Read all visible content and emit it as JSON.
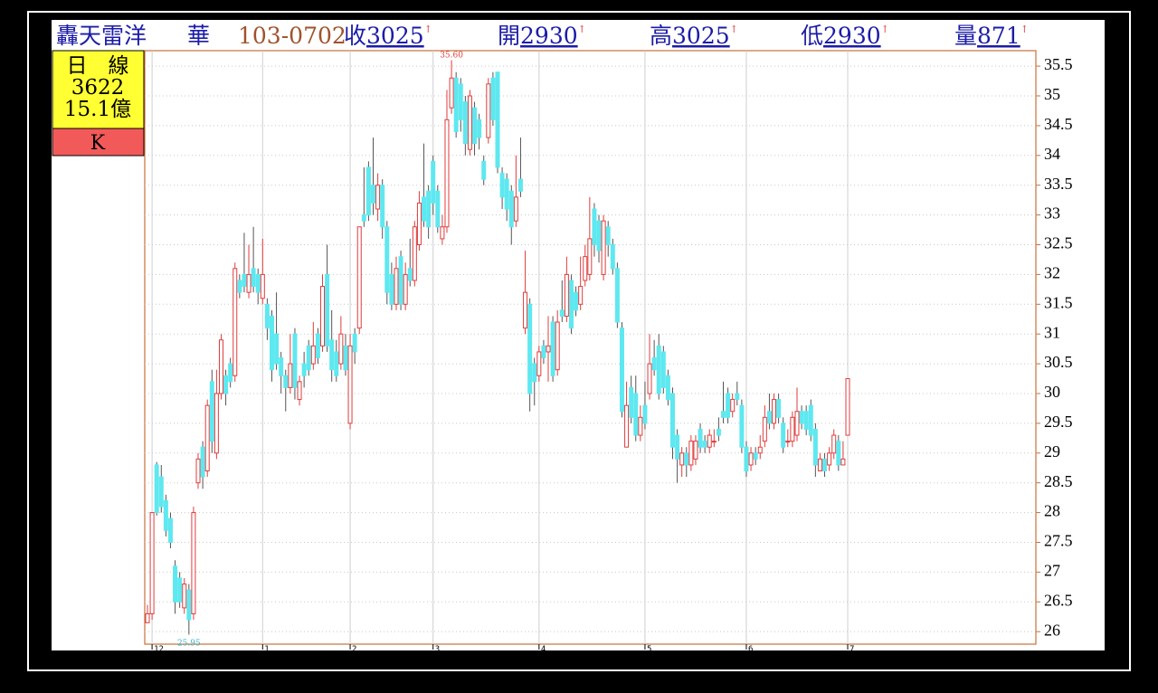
{
  "header": {
    "name": "轟天雷洋",
    "name2": "華",
    "date": "103-0702",
    "quotes": [
      {
        "label": "收",
        "value": "3025",
        "mark": "↑"
      },
      {
        "label": "開",
        "value": "2930",
        "mark": "↑"
      },
      {
        "label": "高",
        "value": "3025",
        "mark": "↑"
      },
      {
        "label": "低",
        "value": "2930",
        "mark": "↑"
      },
      {
        "label": "量",
        "value": "871",
        "mark": "↑"
      }
    ]
  },
  "side_panel": {
    "period": "日　線",
    "code": "3622",
    "amount": "15.1億",
    "chart_kind": "K"
  },
  "chart_data": {
    "type": "candlestick",
    "categories": [
      null,
      "12",
      null,
      null,
      null,
      null,
      null,
      null,
      null,
      null,
      null,
      null,
      null,
      null,
      null,
      null,
      null,
      null,
      null,
      null,
      null,
      null,
      null,
      null,
      null,
      "1",
      null,
      null,
      null,
      null,
      null,
      null,
      null,
      null,
      null,
      null,
      null,
      null,
      null,
      null,
      null,
      null,
      null,
      null,
      "2",
      null,
      null,
      null,
      null,
      null,
      null,
      null,
      null,
      null,
      null,
      null,
      null,
      null,
      null,
      null,
      null,
      null,
      "3",
      null,
      null,
      null,
      null,
      null,
      null,
      null,
      null,
      null,
      null,
      null,
      null,
      null,
      null,
      null,
      null,
      null,
      null,
      null,
      null,
      null,
      null,
      "4",
      null,
      null,
      null,
      null,
      null,
      null,
      null,
      null,
      null,
      null,
      null,
      null,
      null,
      null,
      null,
      null,
      null,
      null,
      null,
      null,
      null,
      null,
      "5",
      null,
      null,
      null,
      null,
      null,
      null,
      null,
      null,
      null,
      null,
      null,
      null,
      null,
      null,
      null,
      null,
      null,
      null,
      null,
      null,
      null,
      "6",
      null,
      null,
      null,
      null,
      null,
      null,
      null,
      null,
      null,
      null,
      null,
      null,
      null,
      null,
      null,
      null,
      null,
      null,
      null,
      null,
      null,
      "7"
    ],
    "open": [
      26.15,
      26.3,
      28.8,
      28.6,
      28.2,
      27.9,
      27.1,
      26.9,
      26.4,
      26.7,
      26.3,
      28.5,
      29.1,
      28.7,
      30.2,
      29.0,
      30.0,
      30.3,
      30.5,
      30.3,
      31.9,
      32.0,
      31.7,
      32.1,
      32.0,
      31.6,
      31.5,
      31.3,
      31.0,
      30.6,
      30.3,
      30.1,
      31.0,
      29.9,
      30.5,
      30.8,
      30.5,
      31.0,
      30.8,
      32.0,
      30.9,
      30.7,
      30.5,
      30.8,
      29.5,
      31.0,
      31.1,
      33.0,
      33.8,
      33.5,
      33.1,
      33.5,
      32.8,
      32.0,
      31.5,
      32.3,
      31.5,
      32.1,
      31.9,
      32.5,
      33.3,
      33.4,
      33.9,
      33.4,
      32.6,
      32.8,
      34.8,
      35.3,
      35.2,
      34.9,
      34.1,
      34.8,
      34.6,
      33.9,
      34.3,
      35.3,
      35.4,
      33.7,
      33.6,
      33.4,
      32.9,
      33.6,
      31.1,
      31.5,
      30.5,
      30.3,
      30.8,
      30.7,
      31.2,
      30.4,
      31.4,
      31.3,
      31.9,
      31.7,
      31.5,
      31.9,
      32.0,
      33.1,
      32.9,
      32.0,
      32.8,
      32.5,
      32.1,
      31.1,
      29.1,
      30.1,
      30.0,
      29.3,
      29.8,
      30.0,
      30.6,
      30.8,
      30.7,
      30.3,
      30.0,
      29.3,
      28.8,
      29.0,
      28.8,
      28.9,
      29.4,
      29.2,
      29.1,
      29.2,
      29.4,
      29.7,
      30.0,
      29.7,
      30.0,
      29.8,
      29.1,
      28.8,
      29.0,
      29.0,
      29.2,
      29.7,
      29.5,
      29.9,
      29.5,
      29.2,
      29.2,
      29.3,
      29.7,
      29.7,
      29.8,
      29.4,
      28.7,
      28.9,
      28.8,
      29.0,
      29.2,
      28.8,
      29.3
    ],
    "high": [
      26.45,
      28.0,
      28.85,
      28.8,
      28.3,
      28.0,
      27.2,
      27.0,
      26.9,
      26.8,
      28.1,
      29.0,
      29.2,
      29.9,
      30.4,
      30.4,
      31.0,
      30.4,
      30.6,
      32.2,
      32.0,
      32.7,
      32.5,
      32.8,
      32.1,
      32.6,
      31.6,
      31.4,
      31.7,
      30.7,
      30.4,
      31.0,
      31.1,
      30.3,
      30.7,
      30.9,
      31.2,
      31.1,
      32.0,
      32.5,
      31.4,
      30.9,
      31.3,
      31.0,
      31.0,
      31.1,
      32.8,
      33.8,
      33.9,
      34.3,
      33.7,
      33.6,
      32.9,
      32.2,
      32.3,
      32.4,
      32.2,
      32.6,
      32.9,
      33.4,
      34.2,
      33.5,
      34.0,
      33.5,
      33.0,
      35.1,
      35.6,
      35.4,
      35.3,
      35.0,
      35.1,
      34.9,
      34.7,
      34.0,
      35.3,
      35.4,
      35.4,
      33.8,
      33.7,
      33.5,
      34.0,
      34.3,
      32.4,
      31.6,
      30.6,
      30.8,
      30.9,
      31.3,
      31.3,
      31.4,
      31.9,
      32.3,
      32.0,
      31.8,
      32.3,
      32.5,
      33.3,
      33.2,
      33.0,
      33.0,
      32.9,
      32.6,
      32.2,
      31.2,
      30.2,
      30.3,
      30.3,
      29.8,
      30.2,
      31.0,
      30.9,
      31.0,
      30.8,
      30.4,
      30.1,
      29.4,
      29.1,
      29.1,
      29.3,
      29.3,
      29.5,
      29.3,
      29.4,
      29.4,
      29.6,
      30.2,
      30.1,
      30.0,
      30.2,
      29.9,
      29.2,
      29.1,
      29.1,
      29.3,
      29.8,
      30.0,
      30.0,
      30.0,
      29.6,
      29.4,
      29.7,
      30.1,
      29.8,
      29.8,
      29.9,
      29.5,
      29.0,
      29.0,
      29.1,
      29.4,
      29.3,
      29.2,
      30.25
    ],
    "low": [
      26.15,
      26.2,
      27.95,
      28.0,
      27.6,
      27.4,
      26.3,
      26.4,
      26.3,
      25.95,
      26.2,
      28.4,
      28.4,
      28.6,
      29.0,
      28.9,
      29.9,
      29.8,
      30.1,
      30.2,
      31.6,
      31.7,
      31.6,
      31.7,
      31.5,
      31.5,
      30.9,
      30.2,
      30.4,
      30.0,
      29.7,
      30.0,
      29.9,
      29.8,
      30.1,
      30.3,
      30.4,
      30.5,
      30.7,
      30.7,
      30.2,
      30.2,
      30.4,
      30.3,
      29.4,
      30.5,
      31.0,
      32.8,
      32.9,
      33.0,
      32.9,
      32.6,
      31.5,
      31.4,
      31.4,
      31.4,
      31.4,
      31.8,
      31.8,
      32.4,
      32.8,
      32.6,
      33.0,
      32.7,
      32.5,
      32.7,
      34.7,
      34.3,
      34.4,
      34.0,
      34.0,
      34.0,
      34.1,
      33.5,
      34.2,
      34.5,
      33.7,
      33.1,
      32.9,
      32.5,
      32.8,
      33.3,
      31.0,
      29.7,
      29.8,
      30.2,
      30.5,
      30.2,
      30.2,
      30.3,
      31.2,
      31.2,
      31.0,
      31.3,
      31.4,
      31.8,
      31.9,
      32.3,
      32.2,
      31.9,
      32.3,
      32.0,
      31.1,
      29.6,
      29.1,
      29.5,
      29.2,
      29.2,
      29.4,
      29.9,
      30.3,
      29.9,
      30.0,
      29.8,
      28.9,
      28.5,
      28.6,
      28.6,
      28.7,
      28.8,
      29.0,
      29.0,
      29.0,
      29.1,
      29.2,
      29.5,
      29.5,
      29.6,
      29.8,
      29.0,
      28.6,
      28.7,
      28.8,
      28.9,
      29.1,
      29.4,
      29.4,
      29.5,
      29.0,
      29.1,
      29.1,
      29.2,
      29.4,
      29.3,
      29.2,
      28.6,
      28.7,
      28.6,
      28.7,
      28.9,
      28.7,
      28.8,
      29.3
    ],
    "close": [
      26.3,
      28.0,
      28.0,
      28.1,
      27.7,
      27.5,
      26.5,
      26.5,
      26.8,
      26.2,
      28.0,
      28.9,
      28.6,
      29.8,
      29.2,
      30.0,
      30.9,
      30.0,
      30.2,
      32.1,
      31.7,
      31.8,
      32.0,
      31.8,
      31.7,
      32.0,
      31.1,
      30.4,
      30.5,
      30.3,
      30.1,
      30.5,
      30.1,
      30.2,
      30.3,
      30.4,
      30.8,
      30.6,
      31.8,
      30.8,
      30.4,
      30.3,
      31.0,
      30.4,
      30.8,
      30.7,
      32.8,
      32.9,
      33.0,
      33.2,
      33.5,
      32.8,
      31.7,
      31.5,
      32.1,
      31.5,
      32.0,
      31.9,
      32.8,
      33.2,
      32.9,
      32.8,
      33.2,
      32.8,
      32.8,
      34.6,
      35.3,
      34.4,
      34.6,
      34.2,
      35.0,
      34.2,
      34.3,
      33.6,
      35.2,
      34.6,
      33.8,
      33.3,
      33.1,
      32.8,
      33.3,
      33.4,
      31.7,
      30.0,
      30.2,
      30.7,
      30.6,
      30.8,
      30.3,
      31.2,
      31.3,
      32.0,
      31.1,
      31.4,
      31.8,
      32.3,
      32.6,
      32.5,
      32.4,
      32.9,
      32.5,
      32.1,
      31.2,
      29.7,
      29.8,
      29.6,
      29.3,
      29.6,
      29.5,
      30.5,
      30.4,
      30.0,
      30.1,
      29.9,
      29.1,
      28.9,
      29.0,
      28.8,
      29.2,
      29.2,
      29.1,
      29.1,
      29.3,
      29.2,
      29.3,
      29.6,
      29.6,
      29.9,
      29.9,
      29.1,
      28.7,
      29.0,
      28.9,
      29.1,
      29.6,
      29.5,
      29.9,
      29.6,
      29.1,
      29.2,
      29.6,
      29.7,
      29.5,
      29.4,
      29.3,
      28.8,
      28.9,
      28.7,
      29.0,
      29.3,
      28.8,
      28.9,
      30.25
    ],
    "up_color": "#e03c3c",
    "down_color": "#5ee8f0",
    "max_label": "35.60",
    "min_label": "25.95",
    "ylim": [
      25.79,
      35.76
    ],
    "yticks": [
      26,
      26.5,
      27,
      27.5,
      28,
      28.5,
      29,
      29.5,
      30,
      30.5,
      31,
      31.5,
      32,
      32.5,
      33,
      33.5,
      34,
      34.5,
      35,
      35.5
    ],
    "grid": true
  }
}
